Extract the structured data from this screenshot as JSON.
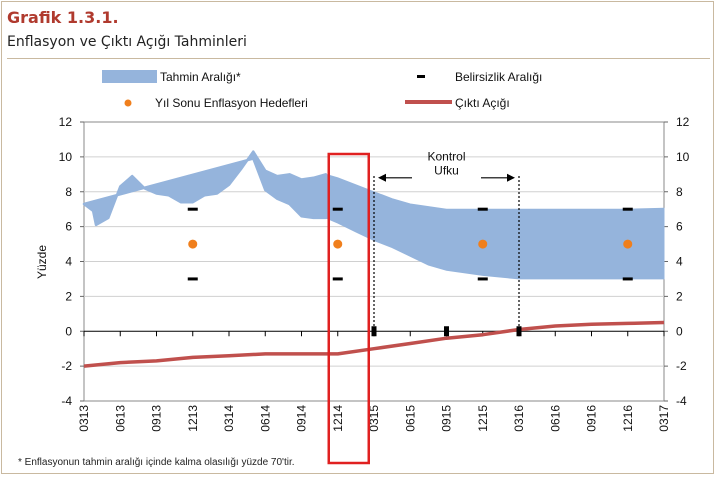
{
  "header": {
    "title": "Grafik 1.3.1.",
    "subtitle": "Enflasyon ve Çıktı Açığı Tahminleri"
  },
  "footnote": "* Enflasyonun tahmin aralığı içinde kalma olasılığı yüzde 70'tir.",
  "colors": {
    "band": "#95b4dc",
    "target": "#f07f1c",
    "gap": "#c0504d",
    "marker": "#000000",
    "highlight": "#e02020"
  },
  "chart_data": {
    "type": "area",
    "ylabel": "Yüzde",
    "ylim": [
      -4,
      12
    ],
    "yticks": [
      -4,
      -2,
      0,
      2,
      4,
      6,
      8,
      10,
      12
    ],
    "xtick_labels": [
      "0313",
      "0613",
      "0913",
      "1213",
      "0314",
      "0614",
      "0914",
      "1214",
      "0315",
      "0615",
      "0915",
      "1215",
      "0316",
      "0616",
      "0916",
      "1216",
      "0317"
    ],
    "legend": {
      "band": "Tahmin Aralığı*",
      "uncertainty": "Belirsizlik Aralığı",
      "target": "Yıl Sonu Enflasyon Hedefleri",
      "gap": "Çıktı Açığı"
    },
    "annotation": {
      "line1": "Kontrol",
      "line2": "Ufku"
    },
    "band_history": [
      [
        0.0,
        7.3
      ],
      [
        0.25,
        6.9
      ],
      [
        0.33,
        6.1
      ],
      [
        0.67,
        6.5
      ],
      [
        1.0,
        8.3
      ],
      [
        1.33,
        8.9
      ],
      [
        1.67,
        8.2
      ],
      [
        2.0,
        7.9
      ],
      [
        2.33,
        7.8
      ],
      [
        2.67,
        7.4
      ],
      [
        3.0,
        7.4
      ],
      [
        3.33,
        7.8
      ],
      [
        3.67,
        7.9
      ],
      [
        4.0,
        8.4
      ],
      [
        4.33,
        9.3
      ],
      [
        4.67,
        10.3
      ],
      [
        5.0,
        9.2
      ],
      [
        5.33,
        8.9
      ],
      [
        5.67,
        9.0
      ],
      [
        6.0,
        8.7
      ],
      [
        6.33,
        8.8
      ],
      [
        6.67,
        9.0
      ]
    ],
    "band_history_lower": [
      [
        4.67,
        9.9
      ],
      [
        5.0,
        8.1
      ],
      [
        5.33,
        7.6
      ],
      [
        5.67,
        7.3
      ],
      [
        6.0,
        6.6
      ],
      [
        6.33,
        6.5
      ],
      [
        6.67,
        6.5
      ]
    ],
    "band_upper": [
      [
        6.67,
        9.0
      ],
      [
        7.0,
        8.8
      ],
      [
        7.5,
        8.4
      ],
      [
        8.0,
        8.0
      ],
      [
        8.5,
        7.6
      ],
      [
        9.0,
        7.3
      ],
      [
        10.0,
        7.0
      ],
      [
        11.0,
        7.0
      ],
      [
        12.0,
        7.0
      ],
      [
        13.0,
        7.0
      ],
      [
        14.0,
        7.0
      ],
      [
        15.0,
        7.0
      ],
      [
        16.0,
        7.05
      ]
    ],
    "band_lower": [
      [
        6.67,
        6.5
      ],
      [
        7.0,
        6.2
      ],
      [
        7.5,
        5.7
      ],
      [
        8.0,
        5.2
      ],
      [
        8.5,
        4.8
      ],
      [
        9.0,
        4.3
      ],
      [
        9.5,
        3.8
      ],
      [
        10.0,
        3.5
      ],
      [
        11.0,
        3.2
      ],
      [
        12.0,
        3.0
      ],
      [
        13.0,
        3.0
      ],
      [
        14.0,
        3.0
      ],
      [
        15.0,
        3.0
      ],
      [
        16.0,
        3.0
      ]
    ],
    "targets": [
      [
        3,
        5
      ],
      [
        7,
        5
      ],
      [
        11,
        5
      ],
      [
        15,
        5
      ]
    ],
    "uncertainty_marks": [
      [
        3,
        7
      ],
      [
        3,
        3
      ],
      [
        7,
        7
      ],
      [
        7,
        3
      ],
      [
        11,
        7
      ],
      [
        11,
        3
      ],
      [
        15,
        7
      ],
      [
        15,
        3
      ]
    ],
    "zero_marks": [
      8,
      10,
      12
    ],
    "output_gap": [
      [
        0,
        -2.0
      ],
      [
        1,
        -1.8
      ],
      [
        2,
        -1.7
      ],
      [
        3,
        -1.5
      ],
      [
        4,
        -1.4
      ],
      [
        5,
        -1.3
      ],
      [
        6,
        -1.3
      ],
      [
        7,
        -1.3
      ],
      [
        8,
        -1.0
      ],
      [
        9,
        -0.7
      ],
      [
        10,
        -0.4
      ],
      [
        11,
        -0.2
      ],
      [
        12,
        0.1
      ],
      [
        13,
        0.3
      ],
      [
        14,
        0.4
      ],
      [
        15,
        0.45
      ],
      [
        16,
        0.5
      ]
    ],
    "control_horizon": [
      8,
      12
    ],
    "highlight_x": 7
  }
}
